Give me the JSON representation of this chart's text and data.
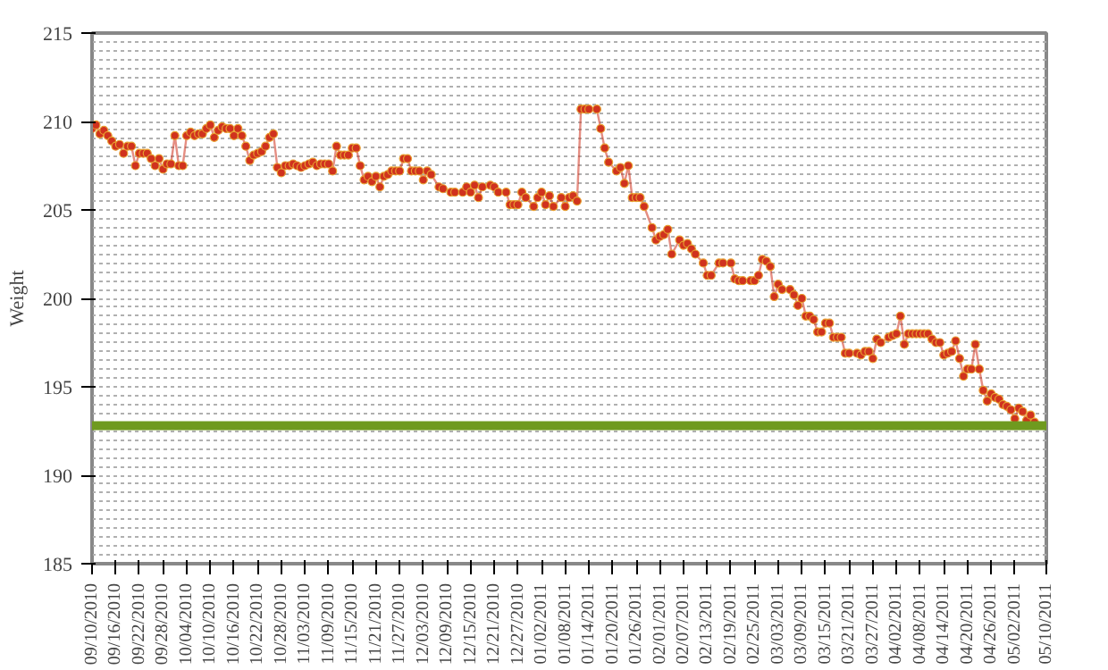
{
  "chart_data": {
    "type": "line",
    "ylabel": "Weight",
    "marker": "circle",
    "line_style": "solid",
    "grid": "y",
    "ylim": [
      185,
      215
    ],
    "yticks": [
      185,
      {
        "value": 185.5,
        "label": null
      },
      {
        "value": 186,
        "label": null
      },
      {
        "value": 186.5,
        "label": null
      },
      {
        "value": 187,
        "label": null
      },
      {
        "value": 187.5,
        "label": null
      },
      {
        "value": 188,
        "label": null
      },
      {
        "value": 188.5,
        "label": null
      },
      {
        "value": 189,
        "label": null
      },
      {
        "value": 189.5,
        "label": null
      },
      190,
      {
        "value": 190.5,
        "label": null
      },
      {
        "value": 191,
        "label": null
      },
      {
        "value": 191.5,
        "label": null
      },
      {
        "value": 192,
        "label": null
      },
      {
        "value": 192.5,
        "label": null
      },
      {
        "value": 193.5,
        "label": null
      },
      {
        "value": 194,
        "label": null
      },
      {
        "value": 194.5,
        "label": null
      },
      195,
      {
        "value": 195.5,
        "label": null
      },
      {
        "value": 196,
        "label": null
      },
      {
        "value": 196.5,
        "label": null
      },
      {
        "value": 197,
        "label": null
      },
      {
        "value": 197.5,
        "label": null
      },
      {
        "value": 198,
        "label": null
      },
      {
        "value": 198.5,
        "label": null
      },
      {
        "value": 199,
        "label": null
      },
      {
        "value": 199.5,
        "label": null
      },
      200,
      {
        "value": 200.5,
        "label": null
      },
      {
        "value": 201,
        "label": null
      },
      {
        "value": 201.5,
        "label": null
      },
      {
        "value": 202,
        "label": null
      },
      {
        "value": 202.5,
        "label": null
      },
      {
        "value": 203,
        "label": null
      },
      {
        "value": 203.5,
        "label": null
      },
      {
        "value": 204,
        "label": null
      },
      {
        "value": 204.5,
        "label": null
      },
      205,
      {
        "value": 205.5,
        "label": null
      },
      {
        "value": 206,
        "label": null
      },
      {
        "value": 206.5,
        "label": null
      },
      {
        "value": 207,
        "label": null
      },
      {
        "value": 207.5,
        "label": null
      },
      {
        "value": 208,
        "label": null
      },
      {
        "value": 208.5,
        "label": null
      },
      {
        "value": 209,
        "label": null
      },
      {
        "value": 209.5,
        "label": null
      },
      210,
      {
        "value": 210.5,
        "label": null
      },
      {
        "value": 211,
        "label": null
      },
      {
        "value": 211.5,
        "label": null
      },
      {
        "value": 212,
        "label": null
      },
      {
        "value": 212.5,
        "label": null
      },
      {
        "value": 213,
        "label": null
      },
      {
        "value": 213.5,
        "label": null
      },
      {
        "value": 214,
        "label": null
      },
      {
        "value": 214.5,
        "label": null
      },
      215
    ],
    "xlim": [
      "2010-09-10",
      "2011-05-10"
    ],
    "xticks": [
      {
        "value": "2010-09-10",
        "label": "09/10/2010"
      },
      {
        "value": "2010-09-16",
        "label": "09/16/2010"
      },
      {
        "value": "2010-09-22",
        "label": "09/22/2010"
      },
      {
        "value": "2010-09-28",
        "label": "09/28/2010"
      },
      {
        "value": "2010-10-04",
        "label": "10/04/2010"
      },
      {
        "value": "2010-10-10",
        "label": "10/10/2010"
      },
      {
        "value": "2010-10-16",
        "label": "10/16/2010"
      },
      {
        "value": "2010-10-22",
        "label": "10/22/2010"
      },
      {
        "value": "2010-10-28",
        "label": "10/28/2010"
      },
      {
        "value": "2010-11-03",
        "label": "11/03/2010"
      },
      {
        "value": "2010-11-09",
        "label": "11/09/2010"
      },
      {
        "value": "2010-11-15",
        "label": "11/15/2010"
      },
      {
        "value": "2010-11-21",
        "label": "11/21/2010"
      },
      {
        "value": "2010-11-27",
        "label": "11/27/2010"
      },
      {
        "value": "2010-12-03",
        "label": "12/03/2010"
      },
      {
        "value": "2010-12-09",
        "label": "12/09/2010"
      },
      {
        "value": "2010-12-15",
        "label": "12/15/2010"
      },
      {
        "value": "2010-12-21",
        "label": "12/21/2010"
      },
      {
        "value": "2010-12-27",
        "label": "12/27/2010"
      },
      {
        "value": "2011-01-02",
        "label": "01/02/2011"
      },
      {
        "value": "2011-01-08",
        "label": "01/08/2011"
      },
      {
        "value": "2011-01-14",
        "label": "01/14/2011"
      },
      {
        "value": "2011-01-20",
        "label": "01/20/2011"
      },
      {
        "value": "2011-01-26",
        "label": "01/26/2011"
      },
      {
        "value": "2011-02-01",
        "label": "02/01/2011"
      },
      {
        "value": "2011-02-07",
        "label": "02/07/2011"
      },
      {
        "value": "2011-02-13",
        "label": "02/13/2011"
      },
      {
        "value": "2011-02-19",
        "label": "02/19/2011"
      },
      {
        "value": "2011-02-25",
        "label": "02/25/2011"
      },
      {
        "value": "2011-03-03",
        "label": "03/03/2011"
      },
      {
        "value": "2011-03-09",
        "label": "03/09/2011"
      },
      {
        "value": "2011-03-15",
        "label": "03/15/2011"
      },
      {
        "value": "2011-03-21",
        "label": "03/21/2011"
      },
      {
        "value": "2011-03-27",
        "label": "03/27/2011"
      },
      {
        "value": "2011-04-02",
        "label": "04/02/2011"
      },
      {
        "value": "2011-04-08",
        "label": "04/08/2011"
      },
      {
        "value": "2011-04-14",
        "label": "04/14/2011"
      },
      {
        "value": "2011-04-20",
        "label": "04/20/2011"
      },
      {
        "value": "2011-04-26",
        "label": "04/26/2011"
      },
      {
        "value": "2011-05-02",
        "label": "05/02/2011"
      },
      {
        "value": "2011-05-10",
        "label": "05/10/2011"
      }
    ],
    "ref_lines": [
      {
        "axis": "y",
        "value": 192.8,
        "color": "#6f9a1f"
      }
    ],
    "series": [
      {
        "color": "#d0321e",
        "x": [
          "2010-09-10",
          "2010-09-11",
          "2010-09-12",
          "2010-09-13",
          "2010-09-14",
          "2010-09-15",
          "2010-09-16",
          "2010-09-17",
          "2010-09-18",
          "2010-09-19",
          "2010-09-20",
          "2010-09-21",
          "2010-09-22",
          "2010-09-23",
          "2010-09-24",
          "2010-09-25",
          "2010-09-26",
          "2010-09-27",
          "2010-09-28",
          "2010-09-29",
          "2010-09-30",
          "2010-10-01",
          "2010-10-02",
          "2010-10-03",
          "2010-10-04",
          "2010-10-05",
          "2010-10-06",
          "2010-10-07",
          "2010-10-08",
          "2010-10-09",
          "2010-10-10",
          "2010-10-11",
          "2010-10-12",
          "2010-10-13",
          "2010-10-14",
          "2010-10-15",
          "2010-10-16",
          "2010-10-17",
          "2010-10-18",
          "2010-10-19",
          "2010-10-20",
          "2010-10-21",
          "2010-10-22",
          "2010-10-23",
          "2010-10-24",
          "2010-10-25",
          "2010-10-26",
          "2010-10-27",
          "2010-10-28",
          "2010-10-29",
          "2010-10-30",
          "2010-10-31",
          "2010-11-01",
          "2010-11-02",
          "2010-11-03",
          "2010-11-04",
          "2010-11-05",
          "2010-11-06",
          "2010-11-07",
          "2010-11-08",
          "2010-11-09",
          "2010-11-10",
          "2010-11-11",
          "2010-11-12",
          "2010-11-13",
          "2010-11-14",
          "2010-11-15",
          "2010-11-16",
          "2010-11-17",
          "2010-11-18",
          "2010-11-19",
          "2010-11-20",
          "2010-11-21",
          "2010-11-22",
          "2010-11-23",
          "2010-11-24",
          "2010-11-25",
          "2010-11-26",
          "2010-11-27",
          "2010-11-28",
          "2010-11-29",
          "2010-11-30",
          "2010-12-01",
          "2010-12-02",
          "2010-12-03",
          "2010-12-04",
          "2010-12-05",
          "2010-12-07",
          "2010-12-08",
          "2010-12-10",
          "2010-12-11",
          "2010-12-13",
          "2010-12-14",
          "2010-12-15",
          "2010-12-16",
          "2010-12-17",
          "2010-12-18",
          "2010-12-20",
          "2010-12-21",
          "2010-12-22",
          "2010-12-24",
          "2010-12-25",
          "2010-12-26",
          "2010-12-27",
          "2010-12-28",
          "2010-12-29",
          "2010-12-31",
          "2011-01-01",
          "2011-01-02",
          "2011-01-03",
          "2011-01-04",
          "2011-01-05",
          "2011-01-07",
          "2011-01-08",
          "2011-01-09",
          "2011-01-10",
          "2011-01-11",
          "2011-01-12",
          "2011-01-13",
          "2011-01-14",
          "2011-01-16",
          "2011-01-17",
          "2011-01-18",
          "2011-01-19",
          "2011-01-21",
          "2011-01-22",
          "2011-01-23",
          "2011-01-24",
          "2011-01-25",
          "2011-01-26",
          "2011-01-27",
          "2011-01-28",
          "2011-01-30",
          "2011-01-31",
          "2011-02-01",
          "2011-02-02",
          "2011-02-03",
          "2011-02-04",
          "2011-02-06",
          "2011-02-07",
          "2011-02-08",
          "2011-02-09",
          "2011-02-10",
          "2011-02-12",
          "2011-02-13",
          "2011-02-14",
          "2011-02-16",
          "2011-02-17",
          "2011-02-19",
          "2011-02-20",
          "2011-02-21",
          "2011-02-22",
          "2011-02-24",
          "2011-02-25",
          "2011-02-26",
          "2011-02-27",
          "2011-02-28",
          "2011-03-01",
          "2011-03-02",
          "2011-03-03",
          "2011-03-04",
          "2011-03-06",
          "2011-03-07",
          "2011-03-08",
          "2011-03-09",
          "2011-03-10",
          "2011-03-11",
          "2011-03-12",
          "2011-03-13",
          "2011-03-14",
          "2011-03-15",
          "2011-03-16",
          "2011-03-17",
          "2011-03-18",
          "2011-03-19",
          "2011-03-20",
          "2011-03-21",
          "2011-03-23",
          "2011-03-24",
          "2011-03-25",
          "2011-03-26",
          "2011-03-27",
          "2011-03-28",
          "2011-03-29",
          "2011-03-31",
          "2011-04-01",
          "2011-04-02",
          "2011-04-03",
          "2011-04-04",
          "2011-04-05",
          "2011-04-06",
          "2011-04-07",
          "2011-04-08",
          "2011-04-09",
          "2011-04-10",
          "2011-04-11",
          "2011-04-12",
          "2011-04-13",
          "2011-04-14",
          "2011-04-15",
          "2011-04-16",
          "2011-04-17",
          "2011-04-18",
          "2011-04-19",
          "2011-04-20",
          "2011-04-21",
          "2011-04-22",
          "2011-04-23",
          "2011-04-24",
          "2011-04-25",
          "2011-04-26",
          "2011-04-27",
          "2011-04-28",
          "2011-04-29",
          "2011-04-30",
          "2011-05-01",
          "2011-05-02",
          "2011-05-03",
          "2011-05-04",
          "2011-05-05",
          "2011-05-06",
          "2011-05-07"
        ],
        "values": [
          209.6,
          209.8,
          209.3,
          209.5,
          209.2,
          208.9,
          208.6,
          208.7,
          208.2,
          208.6,
          208.6,
          207.5,
          208.2,
          208.2,
          208.2,
          207.9,
          207.5,
          207.9,
          207.3,
          207.6,
          207.6,
          209.2,
          207.5,
          207.5,
          209.2,
          209.4,
          209.2,
          209.3,
          209.3,
          209.6,
          209.8,
          209.1,
          209.5,
          209.7,
          209.6,
          209.6,
          209.2,
          209.6,
          209.2,
          208.6,
          207.8,
          208.1,
          208.2,
          208.3,
          208.6,
          209.1,
          209.3,
          207.4,
          207.1,
          207.5,
          207.5,
          207.6,
          207.5,
          207.4,
          207.5,
          207.6,
          207.7,
          207.5,
          207.6,
          207.6,
          207.6,
          207.2,
          208.6,
          208.1,
          208.1,
          208.1,
          208.5,
          208.5,
          207.5,
          206.7,
          206.9,
          206.6,
          206.9,
          206.3,
          206.9,
          207.0,
          207.2,
          207.2,
          207.2,
          207.9,
          207.9,
          207.2,
          207.2,
          207.2,
          206.7,
          207.2,
          207.0,
          206.3,
          206.2,
          206.0,
          206.0,
          206.0,
          206.3,
          206.0,
          206.4,
          205.7,
          206.3,
          206.4,
          206.3,
          206.0,
          206.0,
          205.3,
          205.3,
          205.3,
          206.0,
          205.7,
          205.2,
          205.7,
          206.0,
          205.3,
          205.8,
          205.2,
          205.7,
          205.2,
          205.7,
          205.8,
          205.5,
          210.7,
          210.7,
          210.7,
          210.7,
          209.6,
          208.5,
          207.7,
          207.2,
          207.4,
          206.5,
          207.5,
          205.7,
          205.7,
          205.7,
          205.2,
          204.0,
          203.3,
          203.5,
          203.6,
          203.9,
          202.5,
          203.3,
          203.0,
          203.1,
          202.8,
          202.5,
          202.0,
          201.3,
          201.3,
          202.0,
          202.0,
          202.0,
          201.1,
          201.0,
          201.0,
          201.0,
          201.0,
          201.3,
          202.2,
          202.1,
          201.8,
          200.1,
          200.8,
          200.5,
          200.5,
          200.2,
          199.6,
          200.0,
          199.0,
          199.0,
          198.8,
          198.1,
          198.1,
          198.6,
          198.6,
          197.8,
          197.8,
          197.8,
          196.9,
          196.9,
          196.9,
          196.8,
          197.0,
          197.0,
          196.6,
          197.7,
          197.5,
          197.8,
          197.9,
          198.0,
          199.0,
          197.4,
          198.0,
          198.0,
          198.0,
          198.0,
          198.0,
          198.0,
          197.7,
          197.5,
          197.5,
          196.8,
          196.9,
          197.0,
          197.6,
          196.6,
          195.6,
          196.0,
          196.0,
          197.4,
          196.0,
          194.8,
          194.2,
          194.6,
          194.4,
          194.3,
          194.0,
          193.9,
          193.7,
          193.2,
          193.8,
          193.6,
          193.1,
          193.4,
          193.0
        ]
      }
    ]
  }
}
